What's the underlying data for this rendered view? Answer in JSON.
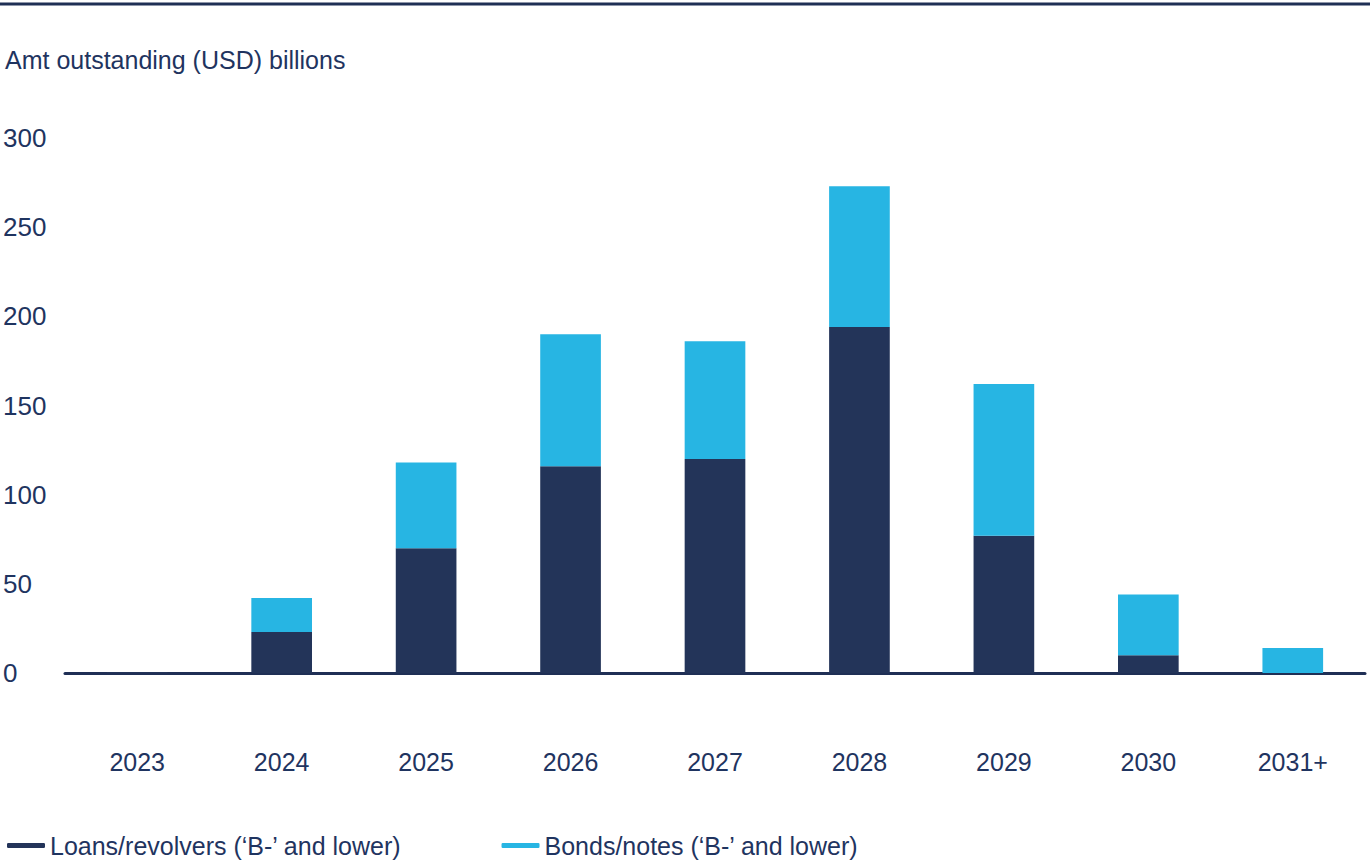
{
  "chart_data": {
    "type": "bar",
    "y_label": "Amt outstanding (USD) billions",
    "categories": [
      "2023",
      "2024",
      "2025",
      "2026",
      "2027",
      "2028",
      "2029",
      "2030",
      "2031+"
    ],
    "series": [
      {
        "name": "Loans/revolvers (‘B-’ and lower)",
        "color": "#233459",
        "values": [
          0.5,
          23,
          70,
          116,
          120,
          194,
          77,
          10,
          0
        ]
      },
      {
        "name": "Bonds/notes (‘B-’ and lower)",
        "color": "#27b5e3",
        "values": [
          0,
          19,
          48,
          74,
          66,
          79,
          85,
          34,
          14
        ]
      }
    ],
    "stacked": true,
    "ylim": [
      0,
      300
    ],
    "yticks": [
      0,
      50,
      100,
      150,
      200,
      250,
      300
    ],
    "grid": false,
    "legend": "bottom"
  }
}
